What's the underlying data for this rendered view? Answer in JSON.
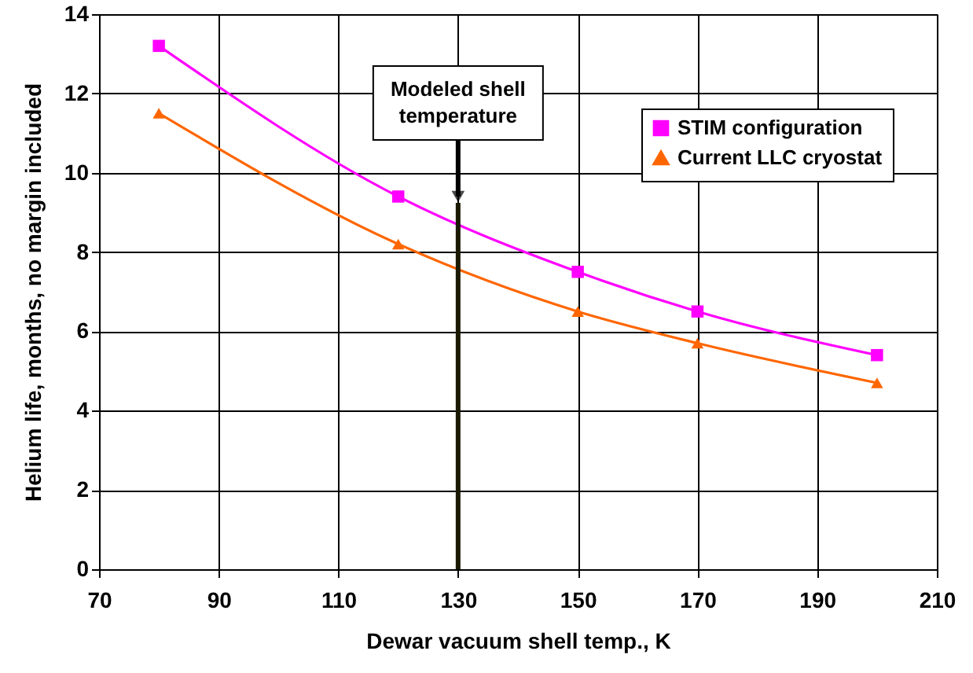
{
  "chart_data": {
    "type": "line",
    "xlabel": "Dewar vacuum shell temp., K",
    "ylabel": "Helium life, months, no margin included",
    "xlim": [
      70,
      210
    ],
    "xticks": [
      70,
      90,
      110,
      130,
      150,
      170,
      190,
      210
    ],
    "ylim": [
      0,
      14
    ],
    "yticks": [
      0,
      2,
      4,
      6,
      8,
      10,
      12,
      14
    ],
    "x": [
      80,
      120,
      150,
      170,
      200
    ],
    "series": [
      {
        "name": "STIM configuration",
        "color": "#ff00ff",
        "marker": "square",
        "values": [
          13.2,
          9.4,
          7.5,
          6.5,
          5.4
        ]
      },
      {
        "name": "Current LLC cryostat",
        "color": "#ff6600",
        "marker": "triangle",
        "values": [
          11.5,
          8.2,
          6.5,
          5.7,
          4.7
        ]
      }
    ],
    "ref_lines": [
      {
        "axis": "x",
        "value": 130,
        "label": "Modeled shell temperature",
        "color": "#1a1a00"
      }
    ],
    "grid": true,
    "legend": "top right"
  }
}
